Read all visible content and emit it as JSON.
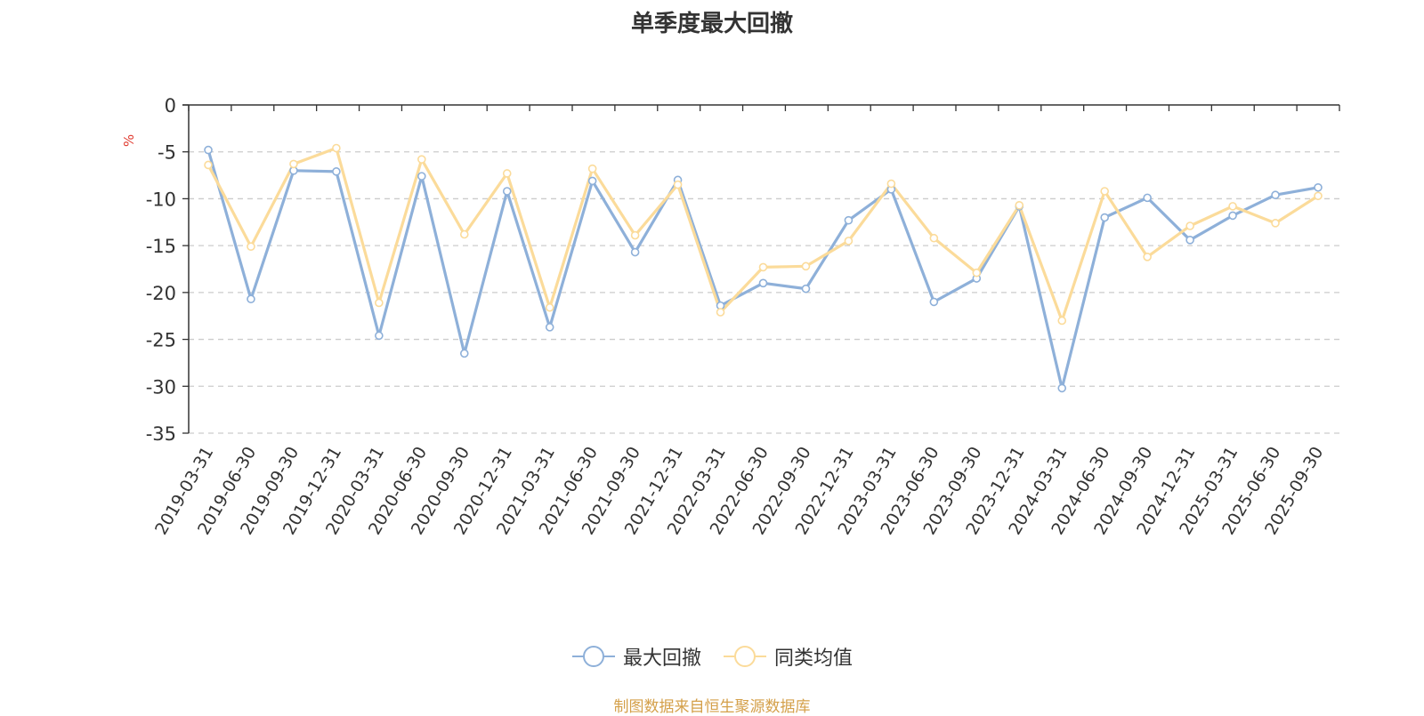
{
  "chart_data": {
    "type": "line",
    "title": "单季度最大回撤",
    "ylabel": "%",
    "ylim": [
      -35,
      0
    ],
    "yticks": [
      0,
      -5,
      -10,
      -15,
      -20,
      -25,
      -30,
      -35
    ],
    "ytick_labels": [
      "0",
      "-5",
      "-10",
      "-15",
      "-20",
      "-25",
      "-30",
      "-35"
    ],
    "grid": true,
    "legend_position": "bottom",
    "categories": [
      "2019-03-31",
      "2019-06-30",
      "2019-09-30",
      "2019-12-31",
      "2020-03-31",
      "2020-06-30",
      "2020-09-30",
      "2020-12-31",
      "2021-03-31",
      "2021-06-30",
      "2021-09-30",
      "2021-12-31",
      "2022-03-31",
      "2022-06-30",
      "2022-09-30",
      "2022-12-31",
      "2023-03-31",
      "2023-06-30",
      "2023-09-30",
      "2023-12-31",
      "2024-03-31",
      "2024-06-30",
      "2024-09-30",
      "2024-12-31",
      "2025-03-31",
      "2025-06-30",
      "2025-09-30"
    ],
    "series": [
      {
        "name": "最大回撤",
        "color": "#8eb0d9",
        "values": [
          -4.8,
          -20.7,
          -7.0,
          -7.1,
          -24.6,
          -7.6,
          -26.5,
          -9.2,
          -23.7,
          -8.1,
          -15.7,
          -8.0,
          -21.4,
          -19.0,
          -19.6,
          -12.3,
          -9.0,
          -21.0,
          -18.5,
          -10.8,
          -30.2,
          -12.0,
          -9.9,
          -14.4,
          -11.8,
          -9.6,
          -8.8
        ]
      },
      {
        "name": "同类均值",
        "color": "#fbdb9a",
        "values": [
          -6.4,
          -15.1,
          -6.3,
          -4.6,
          -21.1,
          -5.8,
          -13.8,
          -7.3,
          -21.6,
          -6.8,
          -13.9,
          -8.5,
          -22.1,
          -17.3,
          -17.2,
          -14.5,
          -8.4,
          -14.2,
          -17.9,
          -10.7,
          -23.0,
          -9.2,
          -16.2,
          -12.9,
          -10.8,
          -12.6,
          -9.7
        ]
      }
    ]
  },
  "footer": {
    "source": "制图数据来自恒生聚源数据库"
  }
}
